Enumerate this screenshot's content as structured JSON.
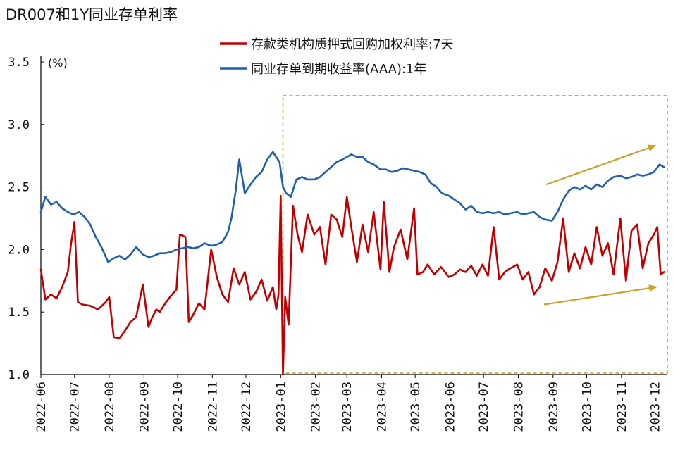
{
  "chart_data": {
    "type": "line",
    "title": "DR007和1Y同业存单利率",
    "ylabel": "(%)",
    "ylim": [
      1.0,
      3.5
    ],
    "yticks": [
      "3.5",
      "3.0",
      "2.5",
      "2.0",
      "1.5",
      "1.0"
    ],
    "xticks": [
      "2022-06",
      "2022-07",
      "2022-08",
      "2022-09",
      "2022-10",
      "2022-11",
      "2022-12",
      "2023-01",
      "2023-02",
      "2023-03",
      "2023-04",
      "2023-05",
      "2023-06",
      "2023-07",
      "2023-08",
      "2023-09",
      "2023-10",
      "2023-11",
      "2023-12"
    ],
    "legend_position": "top",
    "grid": false,
    "series": [
      {
        "name": "存款类机构质押式回购加权利率:7天",
        "color": "#C00000",
        "x": [
          "2022-06-01",
          "2022-06-05",
          "2022-06-10",
          "2022-06-15",
          "2022-06-20",
          "2022-06-25",
          "2022-06-28",
          "2022-07-01",
          "2022-07-04",
          "2022-07-08",
          "2022-07-15",
          "2022-07-22",
          "2022-07-29",
          "2022-08-01",
          "2022-08-05",
          "2022-08-10",
          "2022-08-15",
          "2022-08-20",
          "2022-08-25",
          "2022-08-31",
          "2022-09-05",
          "2022-09-08",
          "2022-09-12",
          "2022-09-15",
          "2022-09-20",
          "2022-09-25",
          "2022-09-30",
          "2022-10-03",
          "2022-10-08",
          "2022-10-11",
          "2022-10-15",
          "2022-10-20",
          "2022-10-25",
          "2022-10-31",
          "2022-11-05",
          "2022-11-10",
          "2022-11-15",
          "2022-11-20",
          "2022-11-25",
          "2022-11-30",
          "2022-12-05",
          "2022-12-10",
          "2022-12-15",
          "2022-12-20",
          "2022-12-25",
          "2022-12-28",
          "2022-12-30",
          "2023-01-01",
          "2023-01-03",
          "2023-01-05",
          "2023-01-08",
          "2023-01-12",
          "2023-01-16",
          "2023-01-20",
          "2023-01-25",
          "2023-01-31",
          "2023-02-05",
          "2023-02-10",
          "2023-02-15",
          "2023-02-20",
          "2023-02-25",
          "2023-03-01",
          "2023-03-05",
          "2023-03-10",
          "2023-03-15",
          "2023-03-20",
          "2023-03-25",
          "2023-03-31",
          "2023-04-03",
          "2023-04-08",
          "2023-04-12",
          "2023-04-18",
          "2023-04-24",
          "2023-04-30",
          "2023-05-03",
          "2023-05-08",
          "2023-05-12",
          "2023-05-18",
          "2023-05-24",
          "2023-05-31",
          "2023-06-05",
          "2023-06-10",
          "2023-06-15",
          "2023-06-20",
          "2023-06-25",
          "2023-06-30",
          "2023-07-05",
          "2023-07-10",
          "2023-07-15",
          "2023-07-20",
          "2023-07-25",
          "2023-07-31",
          "2023-08-05",
          "2023-08-10",
          "2023-08-15",
          "2023-08-20",
          "2023-08-25",
          "2023-08-31",
          "2023-09-05",
          "2023-09-10",
          "2023-09-15",
          "2023-09-20",
          "2023-09-25",
          "2023-09-30",
          "2023-10-05",
          "2023-10-10",
          "2023-10-15",
          "2023-10-20",
          "2023-10-25",
          "2023-10-31",
          "2023-11-05",
          "2023-11-10",
          "2023-11-15",
          "2023-11-20",
          "2023-11-25",
          "2023-11-30",
          "2023-12-03",
          "2023-12-06",
          "2023-12-09"
        ],
        "values": [
          1.84,
          1.6,
          1.64,
          1.61,
          1.7,
          1.82,
          2.05,
          2.22,
          1.58,
          1.56,
          1.55,
          1.52,
          1.58,
          1.62,
          1.3,
          1.29,
          1.35,
          1.42,
          1.46,
          1.72,
          1.38,
          1.45,
          1.52,
          1.5,
          1.57,
          1.63,
          1.68,
          2.12,
          2.1,
          1.42,
          1.48,
          1.57,
          1.52,
          2.0,
          1.78,
          1.64,
          1.58,
          1.85,
          1.72,
          1.82,
          1.6,
          1.66,
          1.76,
          1.59,
          1.7,
          1.52,
          1.64,
          2.43,
          1.0,
          1.62,
          1.4,
          2.35,
          2.12,
          1.98,
          2.28,
          2.12,
          2.18,
          1.88,
          2.28,
          2.24,
          2.1,
          2.42,
          2.18,
          1.9,
          2.2,
          1.98,
          2.3,
          1.84,
          2.38,
          1.82,
          2.02,
          2.16,
          1.92,
          2.33,
          1.8,
          1.82,
          1.88,
          1.8,
          1.86,
          1.78,
          1.8,
          1.84,
          1.82,
          1.87,
          1.79,
          1.88,
          1.79,
          2.18,
          1.76,
          1.82,
          1.85,
          1.88,
          1.76,
          1.82,
          1.64,
          1.7,
          1.85,
          1.75,
          1.9,
          2.25,
          1.82,
          1.97,
          1.85,
          2.02,
          1.88,
          2.18,
          1.95,
          2.05,
          1.8,
          2.25,
          1.75,
          2.15,
          2.2,
          1.85,
          2.05,
          2.12,
          2.18,
          1.8,
          1.82
        ]
      },
      {
        "name": "同业存单到期收益率(AAA):1年",
        "color": "#1F5FAD",
        "x": [
          "2022-06-01",
          "2022-06-05",
          "2022-06-10",
          "2022-06-15",
          "2022-06-20",
          "2022-06-25",
          "2022-06-30",
          "2022-07-05",
          "2022-07-10",
          "2022-07-15",
          "2022-07-20",
          "2022-07-25",
          "2022-07-31",
          "2022-08-05",
          "2022-08-10",
          "2022-08-15",
          "2022-08-20",
          "2022-08-25",
          "2022-08-31",
          "2022-09-05",
          "2022-09-10",
          "2022-09-15",
          "2022-09-20",
          "2022-09-25",
          "2022-09-30",
          "2022-10-05",
          "2022-10-10",
          "2022-10-15",
          "2022-10-20",
          "2022-10-25",
          "2022-10-31",
          "2022-11-05",
          "2022-11-10",
          "2022-11-15",
          "2022-11-18",
          "2022-11-22",
          "2022-11-25",
          "2022-11-30",
          "2022-12-05",
          "2022-12-10",
          "2022-12-15",
          "2022-12-20",
          "2022-12-25",
          "2022-12-31",
          "2023-01-03",
          "2023-01-06",
          "2023-01-10",
          "2023-01-15",
          "2023-01-20",
          "2023-01-25",
          "2023-01-31",
          "2023-02-05",
          "2023-02-10",
          "2023-02-15",
          "2023-02-20",
          "2023-02-25",
          "2023-03-01",
          "2023-03-05",
          "2023-03-10",
          "2023-03-15",
          "2023-03-20",
          "2023-03-25",
          "2023-03-31",
          "2023-04-05",
          "2023-04-10",
          "2023-04-15",
          "2023-04-20",
          "2023-04-25",
          "2023-04-30",
          "2023-05-05",
          "2023-05-10",
          "2023-05-15",
          "2023-05-20",
          "2023-05-25",
          "2023-05-31",
          "2023-06-05",
          "2023-06-10",
          "2023-06-15",
          "2023-06-20",
          "2023-06-25",
          "2023-06-30",
          "2023-07-05",
          "2023-07-10",
          "2023-07-15",
          "2023-07-20",
          "2023-07-25",
          "2023-07-31",
          "2023-08-05",
          "2023-08-10",
          "2023-08-15",
          "2023-08-20",
          "2023-08-25",
          "2023-08-31",
          "2023-09-05",
          "2023-09-10",
          "2023-09-15",
          "2023-09-20",
          "2023-09-25",
          "2023-09-30",
          "2023-10-05",
          "2023-10-10",
          "2023-10-15",
          "2023-10-20",
          "2023-10-25",
          "2023-10-31",
          "2023-11-05",
          "2023-11-10",
          "2023-11-15",
          "2023-11-20",
          "2023-11-25",
          "2023-11-30",
          "2023-12-05",
          "2023-12-09"
        ],
        "values": [
          2.3,
          2.42,
          2.36,
          2.38,
          2.33,
          2.3,
          2.28,
          2.3,
          2.26,
          2.2,
          2.1,
          2.02,
          1.9,
          1.93,
          1.95,
          1.92,
          1.96,
          2.02,
          1.96,
          1.94,
          1.95,
          1.97,
          1.97,
          1.98,
          2.0,
          2.01,
          2.02,
          2.01,
          2.02,
          2.05,
          2.03,
          2.04,
          2.06,
          2.14,
          2.25,
          2.48,
          2.72,
          2.45,
          2.52,
          2.58,
          2.62,
          2.72,
          2.78,
          2.7,
          2.5,
          2.45,
          2.42,
          2.56,
          2.58,
          2.56,
          2.56,
          2.58,
          2.62,
          2.66,
          2.7,
          2.72,
          2.74,
          2.76,
          2.74,
          2.74,
          2.7,
          2.68,
          2.64,
          2.64,
          2.62,
          2.63,
          2.65,
          2.64,
          2.63,
          2.62,
          2.6,
          2.53,
          2.5,
          2.45,
          2.43,
          2.4,
          2.37,
          2.32,
          2.35,
          2.3,
          2.29,
          2.3,
          2.29,
          2.3,
          2.28,
          2.29,
          2.3,
          2.28,
          2.29,
          2.3,
          2.26,
          2.24,
          2.23,
          2.3,
          2.4,
          2.47,
          2.5,
          2.48,
          2.51,
          2.48,
          2.52,
          2.5,
          2.55,
          2.58,
          2.59,
          2.57,
          2.58,
          2.6,
          2.59,
          2.6,
          2.62,
          2.68,
          2.66
        ]
      }
    ],
    "annotations": {
      "highlight_box": {
        "from": "2023-01-03",
        "to": "2023-12-12",
        "y_top": 3.23,
        "y_bottom": 1.0,
        "color": "#C9A227",
        "style": "dashed"
      },
      "trend_arrows": [
        {
          "color": "#C9A227",
          "from": [
            "2023-08-26",
            2.52
          ],
          "to": [
            "2023-12-01",
            2.83
          ]
        },
        {
          "color": "#C9A227",
          "from": [
            "2023-08-24",
            1.56
          ],
          "to": [
            "2023-12-02",
            1.7
          ]
        }
      ]
    }
  }
}
